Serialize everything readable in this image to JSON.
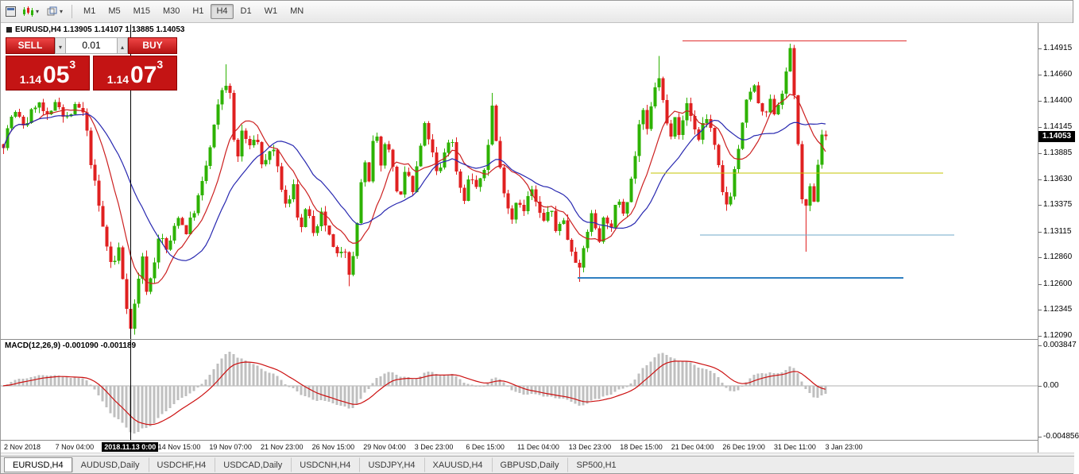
{
  "toolbar": {
    "timeframes": [
      "M1",
      "M5",
      "M15",
      "M30",
      "H1",
      "H4",
      "D1",
      "W1",
      "MN"
    ],
    "active_timeframe": "H4"
  },
  "quote": {
    "title": "EURUSD,H4 1.13905 1.14107 1.13885 1.14053",
    "open": "1.13905",
    "high": "1.14107",
    "low": "1.13885",
    "close": "1.14053"
  },
  "trade_panel": {
    "sell_label": "SELL",
    "buy_label": "BUY",
    "volume": "0.01",
    "sell_price_prefix": "1.14",
    "sell_price_big": "05",
    "sell_price_sup": "3",
    "buy_price_prefix": "1.14",
    "buy_price_big": "07",
    "buy_price_sup": "3"
  },
  "price_axis": {
    "labels": [
      "1.14915",
      "1.14660",
      "1.14400",
      "1.14145",
      "1.13885",
      "1.13630",
      "1.13375",
      "1.13115",
      "1.12860",
      "1.12600",
      "1.12345",
      "1.12090"
    ],
    "current": "1.14053"
  },
  "macd": {
    "label": "MACD(12,26,9) -0.001090 -0.001189",
    "axis_labels": [
      "0.003847",
      "0.00",
      "-0.004856"
    ]
  },
  "time_axis": {
    "labels": [
      "2 Nov 2018",
      "7 Nov 04:00",
      "2018.11.13 0:00",
      "14 Nov 15:00",
      "19 Nov 07:00",
      "21 Nov 23:00",
      "26 Nov 15:00",
      "29 Nov 04:00",
      "3 Dec 23:00",
      "6 Dec 15:00",
      "11 Dec 04:00",
      "13 Dec 23:00",
      "18 Dec 15:00",
      "21 Dec 04:00",
      "26 Dec 19:00",
      "31 Dec 11:00",
      "3 Jan 23:00"
    ],
    "highlighted_index": 2,
    "highlighted_label": "2018.11.13 0:00"
  },
  "tabs": {
    "items": [
      "EURUSD,H4",
      "AUDUSD,Daily",
      "USDCHF,H4",
      "USDCAD,Daily",
      "USDCNH,H4",
      "USDJPY,H4",
      "XAUUSD,H4",
      "GBPUSD,Daily",
      "SP500,H1"
    ],
    "active_index": 0
  },
  "chart_data": {
    "type": "candlestick",
    "symbol": "EURUSD",
    "timeframe": "H4",
    "title": "EURUSD,H4",
    "ohlc_current": {
      "open": 1.13905,
      "high": 1.14107,
      "low": 1.13885,
      "close": 1.14053
    },
    "bid": "1.14053",
    "ask": "1.14073",
    "ylim": [
      1.1205,
      1.1515
    ],
    "colors": {
      "bull": "#2db200",
      "bear": "#e02020",
      "ma_fast": "#cc2020",
      "ma_slow": "#2828b0",
      "macd_hist": "#bfbfbf",
      "macd_signal": "#cc1010",
      "crosshair": "#000000"
    },
    "moving_averages": [
      {
        "period": 10,
        "color": "#cc2020"
      },
      {
        "period": 21,
        "color": "#2828b0"
      }
    ],
    "macd_params": [
      12,
      26,
      9
    ],
    "macd_axis": {
      "max": 0.003847,
      "min": -0.004856
    },
    "crosshair_x": 163,
    "price_anchors": [
      [
        0,
        1.139
      ],
      [
        15,
        1.143
      ],
      [
        30,
        1.1415
      ],
      [
        45,
        1.144
      ],
      [
        60,
        1.142
      ],
      [
        70,
        1.1445
      ],
      [
        80,
        1.142
      ],
      [
        95,
        1.1435
      ],
      [
        105,
        1.1425
      ],
      [
        112,
        1.1385
      ],
      [
        122,
        1.134
      ],
      [
        132,
        1.13
      ],
      [
        140,
        1.1275
      ],
      [
        148,
        1.1295
      ],
      [
        155,
        1.1255
      ],
      [
        163,
        1.1215
      ],
      [
        170,
        1.125
      ],
      [
        177,
        1.129
      ],
      [
        184,
        1.125
      ],
      [
        192,
        1.128
      ],
      [
        200,
        1.131
      ],
      [
        210,
        1.129
      ],
      [
        222,
        1.133
      ],
      [
        232,
        1.131
      ],
      [
        242,
        1.133
      ],
      [
        252,
        1.1355
      ],
      [
        262,
        1.139
      ],
      [
        272,
        1.143
      ],
      [
        281,
        1.1462
      ],
      [
        288,
        1.1445
      ],
      [
        296,
        1.1375
      ],
      [
        304,
        1.1415
      ],
      [
        312,
        1.139
      ],
      [
        320,
        1.141
      ],
      [
        330,
        1.1372
      ],
      [
        340,
        1.1398
      ],
      [
        350,
        1.1365
      ],
      [
        360,
        1.133
      ],
      [
        368,
        1.136
      ],
      [
        376,
        1.131
      ],
      [
        386,
        1.1338
      ],
      [
        394,
        1.1302
      ],
      [
        404,
        1.133
      ],
      [
        412,
        1.1308
      ],
      [
        422,
        1.1285
      ],
      [
        432,
        1.13
      ],
      [
        440,
        1.1264
      ],
      [
        448,
        1.132
      ],
      [
        456,
        1.1385
      ],
      [
        463,
        1.1358
      ],
      [
        470,
        1.1415
      ],
      [
        478,
        1.138
      ],
      [
        486,
        1.1405
      ],
      [
        494,
        1.1368
      ],
      [
        502,
        1.134
      ],
      [
        510,
        1.1375
      ],
      [
        518,
        1.135
      ],
      [
        526,
        1.1388
      ],
      [
        534,
        1.1418
      ],
      [
        542,
        1.139
      ],
      [
        550,
        1.1362
      ],
      [
        558,
        1.139
      ],
      [
        566,
        1.1408
      ],
      [
        574,
        1.1368
      ],
      [
        582,
        1.1342
      ],
      [
        590,
        1.1368
      ],
      [
        600,
        1.1352
      ],
      [
        610,
        1.1378
      ],
      [
        618,
        1.1435
      ],
      [
        626,
        1.138
      ],
      [
        634,
        1.135
      ],
      [
        642,
        1.1322
      ],
      [
        650,
        1.1348
      ],
      [
        658,
        1.133
      ],
      [
        666,
        1.1355
      ],
      [
        674,
        1.1338
      ],
      [
        682,
        1.1318
      ],
      [
        690,
        1.1338
      ],
      [
        698,
        1.1312
      ],
      [
        706,
        1.1328
      ],
      [
        714,
        1.1302
      ],
      [
        722,
        1.1288
      ],
      [
        728,
        1.1272
      ],
      [
        736,
        1.1308
      ],
      [
        744,
        1.133
      ],
      [
        752,
        1.1302
      ],
      [
        760,
        1.133
      ],
      [
        768,
        1.1312
      ],
      [
        776,
        1.1348
      ],
      [
        784,
        1.133
      ],
      [
        792,
        1.136
      ],
      [
        800,
        1.1395
      ],
      [
        806,
        1.1438
      ],
      [
        812,
        1.1405
      ],
      [
        820,
        1.1442
      ],
      [
        826,
        1.1468
      ],
      [
        833,
        1.144
      ],
      [
        841,
        1.1402
      ],
      [
        848,
        1.1428
      ],
      [
        855,
        1.1402
      ],
      [
        862,
        1.144
      ],
      [
        870,
        1.142
      ],
      [
        878,
        1.1402
      ],
      [
        886,
        1.1428
      ],
      [
        894,
        1.141
      ],
      [
        902,
        1.1378
      ],
      [
        908,
        1.1348
      ],
      [
        915,
        1.1335
      ],
      [
        922,
        1.1368
      ],
      [
        930,
        1.1402
      ],
      [
        938,
        1.1438
      ],
      [
        946,
        1.1458
      ],
      [
        953,
        1.1438
      ],
      [
        960,
        1.142
      ],
      [
        967,
        1.144
      ],
      [
        974,
        1.1428
      ],
      [
        981,
        1.1445
      ],
      [
        988,
        1.1465
      ],
      [
        993,
        1.1492
      ],
      [
        999,
        1.1438
      ],
      [
        1005,
        1.1372
      ],
      [
        1011,
        1.1322
      ],
      [
        1017,
        1.1355
      ],
      [
        1023,
        1.1338
      ],
      [
        1029,
        1.1388
      ],
      [
        1035,
        1.1418
      ],
      [
        1040,
        1.1405
      ]
    ],
    "spikes": [
      {
        "x": 163,
        "price": 1.121,
        "type": "low"
      },
      {
        "x": 281,
        "price": 1.1476,
        "type": "high"
      },
      {
        "x": 440,
        "price": 1.1258,
        "type": "low"
      },
      {
        "x": 618,
        "price": 1.1448,
        "type": "high"
      },
      {
        "x": 728,
        "price": 1.1262,
        "type": "low"
      },
      {
        "x": 826,
        "price": 1.1484,
        "type": "high"
      },
      {
        "x": 993,
        "price": 1.1496,
        "type": "high"
      },
      {
        "x": 1011,
        "price": 1.1292,
        "type": "low"
      }
    ],
    "hlines": [
      {
        "price": 1.1499,
        "x1": 858,
        "x2": 1140,
        "color": "#e03030",
        "width": 1
      },
      {
        "price": 1.1369,
        "x1": 818,
        "x2": 1186,
        "color": "#c6c600",
        "width": 1
      },
      {
        "price": 1.1308,
        "x1": 880,
        "x2": 1200,
        "color": "#6fa8c8",
        "width": 1
      },
      {
        "price": 1.1266,
        "x1": 726,
        "x2": 1136,
        "color": "#2f7fc1",
        "width": 2
      }
    ]
  }
}
